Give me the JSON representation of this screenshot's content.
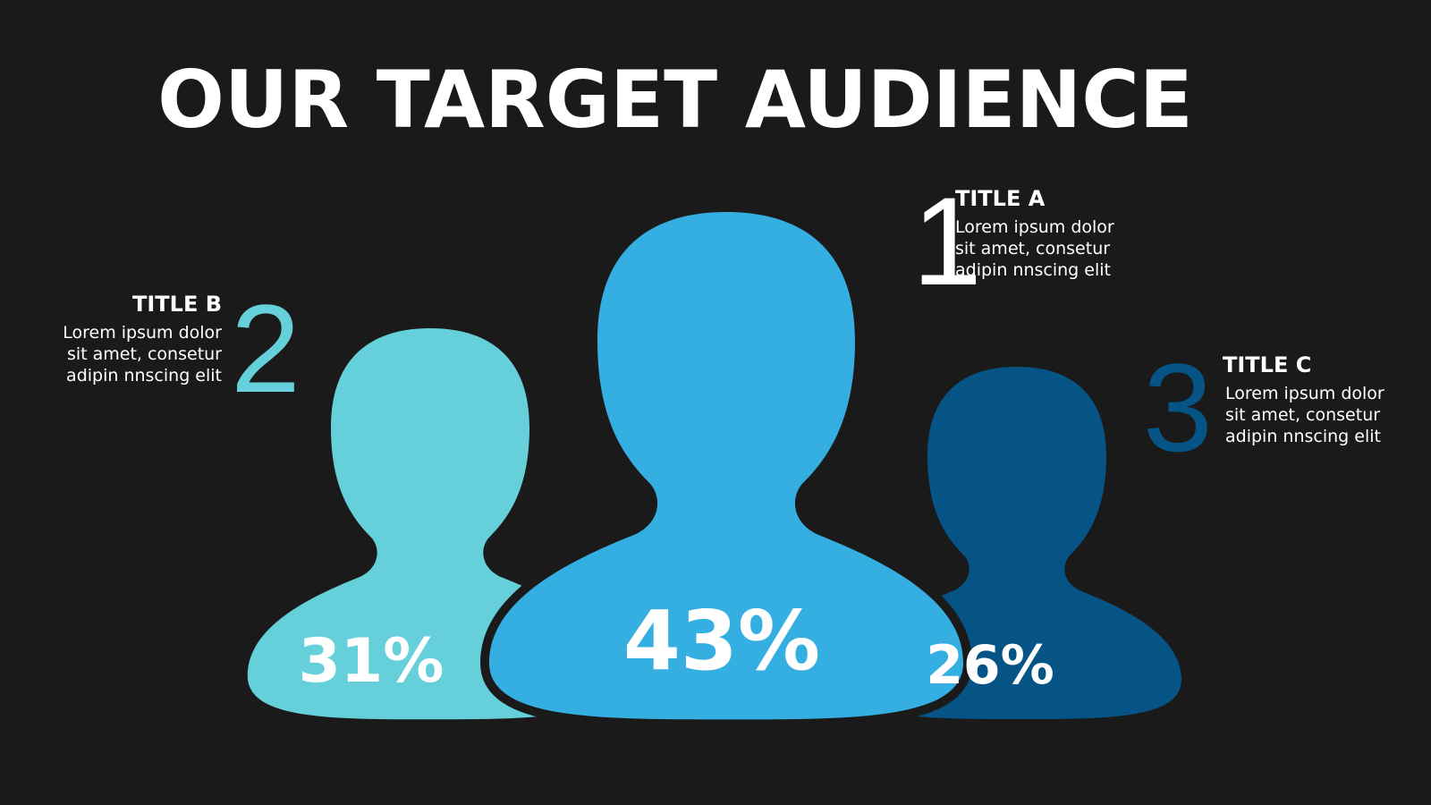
{
  "title": "OUR TARGET AUDIENCE",
  "items": [
    {
      "number": "1",
      "title": "TITLE A",
      "lines": [
        "Lorem ipsum dolor",
        "sit amet, consetur",
        "adipin nnscing elit"
      ],
      "percent": "43%"
    },
    {
      "number": "2",
      "title": "TITLE B",
      "lines": [
        "Lorem ipsum dolor",
        "sit amet, consetur",
        "adipin nnscing elit"
      ],
      "percent": "31%"
    },
    {
      "number": "3",
      "title": "TITLE C",
      "lines": [
        "Lorem ipsum dolor",
        "sit amet, consetur",
        "adipin nnscing elit"
      ],
      "percent": "26%"
    }
  ]
}
